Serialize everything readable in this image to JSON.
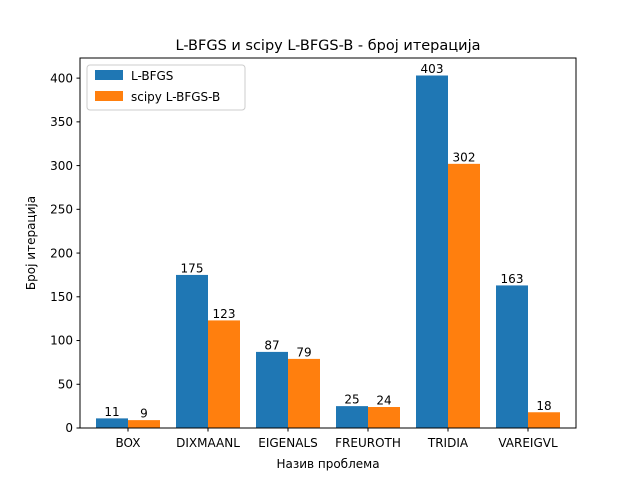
{
  "chart_data": {
    "type": "bar",
    "title": "L-BFGS и scipy L-BFGS-B - број итерација",
    "xlabel": "Назив проблема",
    "ylabel": "Број итерација",
    "categories": [
      "BOX",
      "DIXMAANL",
      "EIGENALS",
      "FREUROTH",
      "TRIDIA",
      "VAREIGVL"
    ],
    "series": [
      {
        "name": "L-BFGS",
        "values": [
          11,
          175,
          87,
          25,
          403,
          163
        ],
        "color": "#1f77b4"
      },
      {
        "name": "scipy L-BFGS-B",
        "values": [
          9,
          123,
          79,
          24,
          302,
          18
        ],
        "color": "#ff7f0e"
      }
    ],
    "ylim": [
      0,
      423
    ],
    "yticks": [
      0,
      50,
      100,
      150,
      200,
      250,
      300,
      350,
      400
    ],
    "grid": false,
    "legend_position": "top-left"
  }
}
